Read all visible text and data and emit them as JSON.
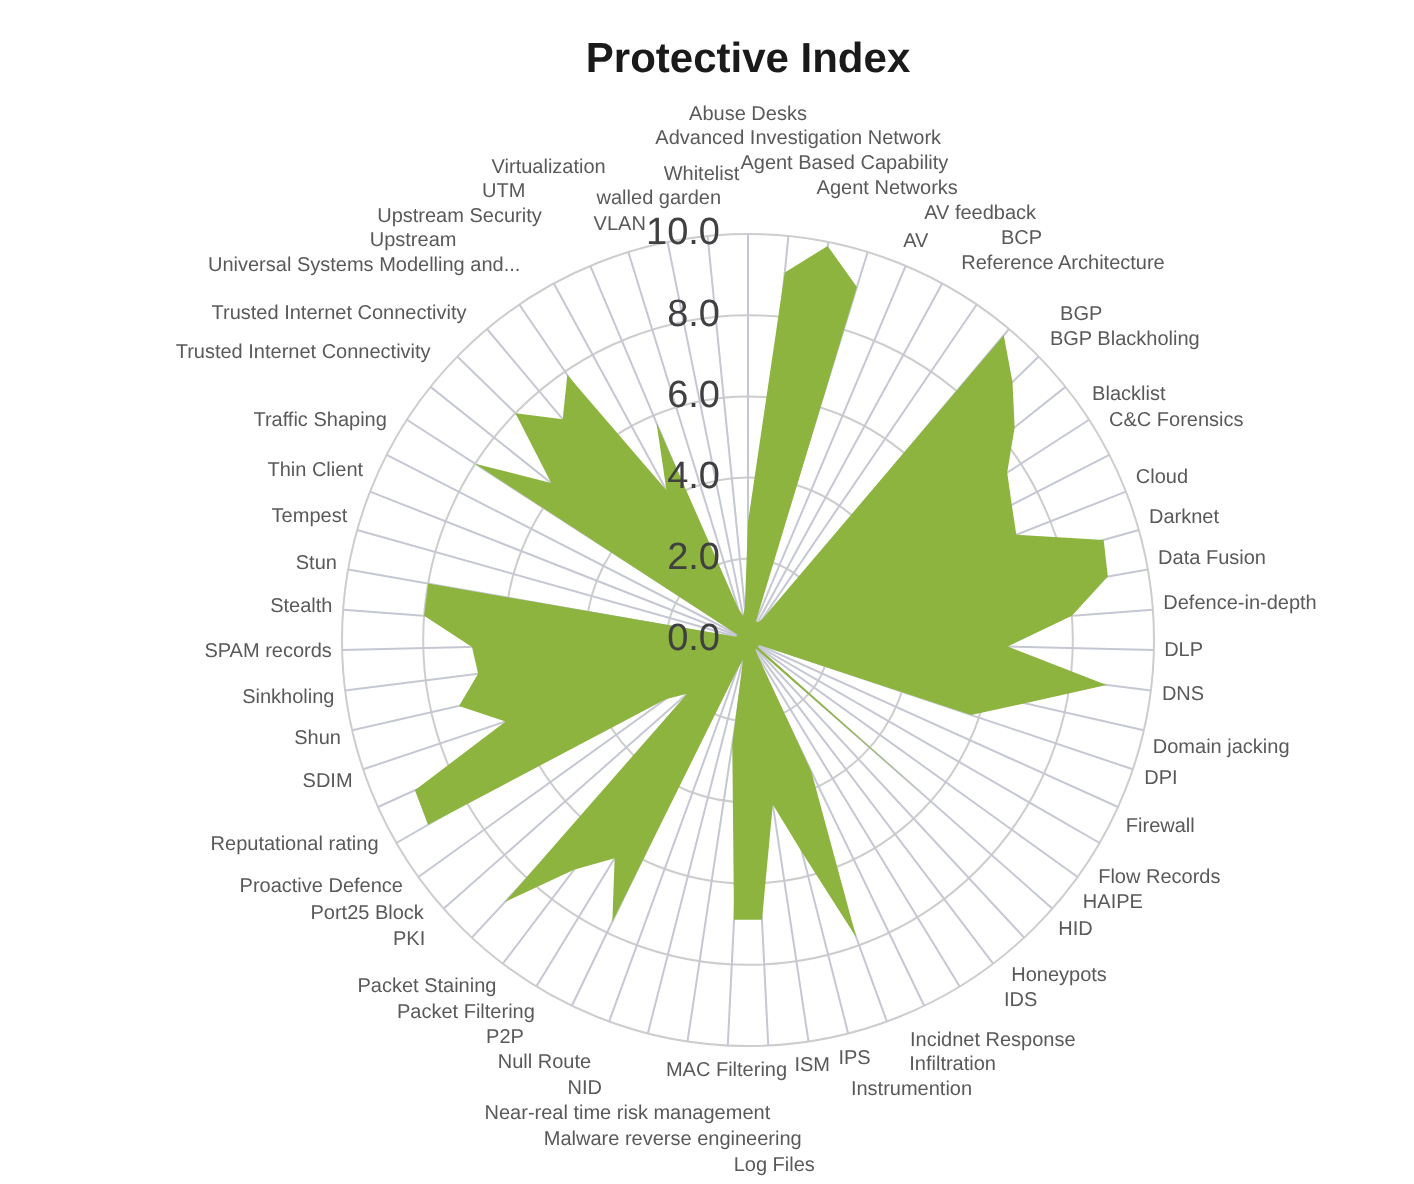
{
  "chart_data": {
    "type": "radar",
    "title": "Protective Index",
    "categories": [
      "Abuse Desks",
      "Advanced Investigation Network",
      "Agent Based Capability",
      "Agent Networks",
      "AV",
      "AV feedback",
      "BCP",
      "Reference Architecture",
      "BGP",
      "BGP Blackholing",
      "Blacklist",
      "C&C Forensics",
      "Cloud",
      "Darknet",
      "Data Fusion",
      "Defence-in-depth",
      "DLP",
      "DNS",
      "Domain jacking",
      "DPI",
      "Firewall",
      "Flow Records",
      "HAIPE",
      "HID",
      "Honeypots",
      "IDS",
      "Incidnet Response",
      "Infiltration",
      "Instrumention",
      "IPS",
      "ISM",
      "Log Files",
      "MAC Filtering",
      "Malware reverse engineering",
      "Near-real time risk management",
      "NID",
      "Null Route",
      "P2P",
      "Packet Filtering",
      "Packet Staining",
      "PKI",
      "Port25 Block",
      "Proactive Defence",
      "Reputational rating",
      "SDIM",
      "Shun",
      "Sinkholing",
      "SPAM records",
      "Stealth",
      "Stun",
      "Tempest",
      "Thin Client",
      "Traffic Shaping",
      "Trusted Internet Connectivity",
      "Trusted Internet Connectivity",
      "Universal Systems Modelling and...",
      "Upstream",
      "Upstream Security",
      "UTM",
      "Virtualization",
      "VLAN",
      "walled garden",
      "Whitelist"
    ],
    "values": [
      2.9,
      9.1,
      9.9,
      9.1,
      0.5,
      0.5,
      0.6,
      9.8,
      9.1,
      8.4,
      7.6,
      7.3,
      7.1,
      9.1,
      9.0,
      8.0,
      6.4,
      8.9,
      7.0,
      5.8,
      0.3,
      0.3,
      0.3,
      5.8,
      0.3,
      0.3,
      0.5,
      3.6,
      7.8,
      5.4,
      4.1,
      6.9,
      6.9,
      2.6,
      0.5,
      0.8,
      7.7,
      6.3,
      7.1,
      8.8,
      2.0,
      2.5,
      9.1,
      9.0,
      6.3,
      7.3,
      6.7,
      6.8,
      8.0,
      8.0,
      0.3,
      0.3,
      0.3,
      8.0,
      6.2,
      8.0,
      7.1,
      7.9,
      4.2,
      5.8,
      0.8,
      0.6,
      0.8
    ],
    "color": "#8cb43e",
    "ylim": [
      0,
      10
    ],
    "yticks": [
      {
        "value": 0,
        "label": "0.0"
      },
      {
        "value": 2,
        "label": "2.0"
      },
      {
        "value": 4,
        "label": "4.0"
      },
      {
        "value": 6,
        "label": "6.0"
      },
      {
        "value": 8,
        "label": "8.0"
      },
      {
        "value": 10,
        "label": "10.0"
      }
    ],
    "grid": true
  }
}
